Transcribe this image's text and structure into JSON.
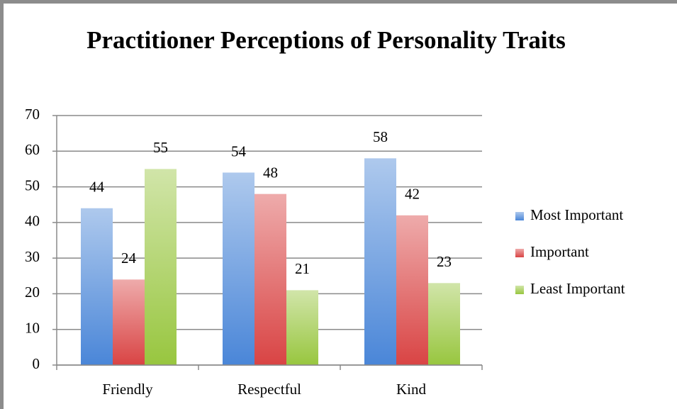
{
  "chart_data": {
    "type": "bar",
    "title": "Practitioner Perceptions of Personality Traits",
    "categories": [
      "Friendly",
      "Respectful",
      "Kind"
    ],
    "series": [
      {
        "name": "Most Important",
        "color": "#4a86d8",
        "values": [
          44,
          54,
          58
        ]
      },
      {
        "name": "Important",
        "color": "#d94444",
        "values": [
          24,
          48,
          42
        ]
      },
      {
        "name": "Least Important",
        "color": "#98c63f",
        "values": [
          55,
          21,
          23
        ]
      }
    ],
    "ylim": [
      0,
      70
    ],
    "yticks": [
      0,
      10,
      20,
      30,
      40,
      50,
      60,
      70
    ],
    "grid": true,
    "legend": "right"
  }
}
